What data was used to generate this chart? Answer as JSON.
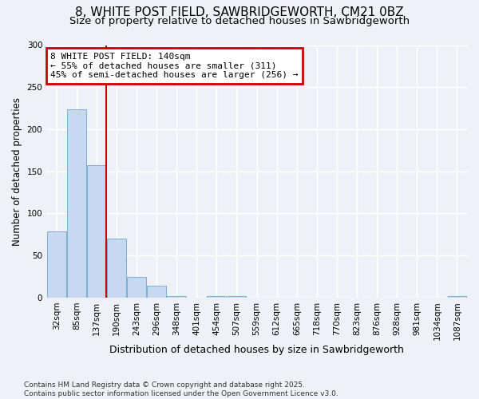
{
  "title_line1": "8, WHITE POST FIELD, SAWBRIDGEWORTH, CM21 0BZ",
  "title_line2": "Size of property relative to detached houses in Sawbridgeworth",
  "xlabel": "Distribution of detached houses by size in Sawbridgeworth",
  "ylabel": "Number of detached properties",
  "categories": [
    "32sqm",
    "85sqm",
    "137sqm",
    "190sqm",
    "243sqm",
    "296sqm",
    "348sqm",
    "401sqm",
    "454sqm",
    "507sqm",
    "559sqm",
    "612sqm",
    "665sqm",
    "718sqm",
    "770sqm",
    "823sqm",
    "876sqm",
    "928sqm",
    "981sqm",
    "1034sqm",
    "1087sqm"
  ],
  "values": [
    79,
    224,
    157,
    70,
    25,
    14,
    2,
    0,
    2,
    2,
    0,
    0,
    0,
    0,
    0,
    0,
    0,
    0,
    0,
    0,
    2
  ],
  "bar_color": "#c6d9f0",
  "bar_edge_color": "#7aafd4",
  "background_color": "#eef2f7",
  "grid_color": "#ffffff",
  "vline_color": "#cc0000",
  "annotation_text": "8 WHITE POST FIELD: 140sqm\n← 55% of detached houses are smaller (311)\n45% of semi-detached houses are larger (256) →",
  "annotation_box_color": "#cc0000",
  "footer_text": "Contains HM Land Registry data © Crown copyright and database right 2025.\nContains public sector information licensed under the Open Government Licence v3.0.",
  "ylim": [
    0,
    300
  ],
  "yticks": [
    0,
    50,
    100,
    150,
    200,
    250,
    300
  ],
  "title1_fontsize": 11,
  "title2_fontsize": 9.5,
  "xlabel_fontsize": 9,
  "ylabel_fontsize": 8.5,
  "tick_fontsize": 7.5,
  "footer_fontsize": 6.5,
  "ann_fontsize": 8
}
